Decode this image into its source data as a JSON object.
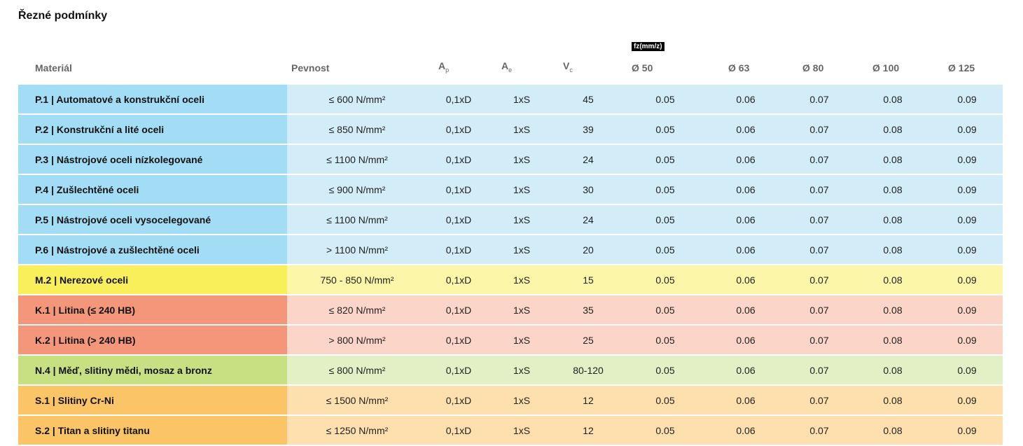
{
  "title": "Řezné podmínky",
  "header": {
    "material": "Materiál",
    "pevnost": "Pevnost",
    "ap": "A",
    "ap_sub": "p",
    "ae": "A",
    "ae_sub": "e",
    "vc": "V",
    "vc_sub": "c",
    "fz": "fz(mm/z)",
    "d50": "Ø 50",
    "d63": "Ø 63",
    "d80": "Ø 80",
    "d100": "Ø 100",
    "d125": "Ø 125"
  },
  "colors": {
    "P": [
      "#a3dcf5",
      "#d2ecf8"
    ],
    "M": [
      "#f8ef5b",
      "#fbf6a8"
    ],
    "K": [
      "#f4967a",
      "#fbd5c7"
    ],
    "N": [
      "#c6e082",
      "#e3efc5"
    ],
    "S": [
      "#fbc466",
      "#fde0ad"
    ]
  },
  "rows": [
    {
      "group": "P",
      "material": "P.1 | Automatové a konstrukční oceli",
      "pevnost": "≤ 600 N/mm²",
      "ap": "0,1xD",
      "ae": "1xS",
      "vc": "45",
      "d50": "0.05",
      "d63": "0.06",
      "d80": "0.07",
      "d100": "0.08",
      "d125": "0.09"
    },
    {
      "group": "P",
      "material": "P.2 | Konstrukční a lité oceli",
      "pevnost": "≤ 850 N/mm²",
      "ap": "0,1xD",
      "ae": "1xS",
      "vc": "39",
      "d50": "0.05",
      "d63": "0.06",
      "d80": "0.07",
      "d100": "0.08",
      "d125": "0.09"
    },
    {
      "group": "P",
      "material": "P.3 | Nástrojové oceli nízkolegované",
      "pevnost": "≤ 1100 N/mm²",
      "ap": "0,1xD",
      "ae": "1xS",
      "vc": "24",
      "d50": "0.05",
      "d63": "0.06",
      "d80": "0.07",
      "d100": "0.08",
      "d125": "0.09"
    },
    {
      "group": "P",
      "material": "P.4 | Zušlechtěné oceli",
      "pevnost": "≤ 900 N/mm²",
      "ap": "0,1xD",
      "ae": "1xS",
      "vc": "30",
      "d50": "0.05",
      "d63": "0.06",
      "d80": "0.07",
      "d100": "0.08",
      "d125": "0.09"
    },
    {
      "group": "P",
      "material": "P.5 | Nástrojové oceli vysocelegované",
      "pevnost": "≤ 1100 N/mm²",
      "ap": "0,1xD",
      "ae": "1xS",
      "vc": "24",
      "d50": "0.05",
      "d63": "0.06",
      "d80": "0.07",
      "d100": "0.08",
      "d125": "0.09"
    },
    {
      "group": "P",
      "material": "P.6 | Nástrojové a zušlechtěné oceli",
      "pevnost": "> 1100 N/mm²",
      "ap": "0,1xD",
      "ae": "1xS",
      "vc": "20",
      "d50": "0.05",
      "d63": "0.06",
      "d80": "0.07",
      "d100": "0.08",
      "d125": "0.09"
    },
    {
      "group": "M",
      "material": "M.2 | Nerezové oceli",
      "pevnost": "750 - 850 N/mm²",
      "ap": "0,1xD",
      "ae": "1xS",
      "vc": "15",
      "d50": "0.05",
      "d63": "0.06",
      "d80": "0.07",
      "d100": "0.08",
      "d125": "0.09"
    },
    {
      "group": "K",
      "material": "K.1 | Litina (≤ 240 HB)",
      "pevnost": "≤ 820 N/mm²",
      "ap": "0,1xD",
      "ae": "1xS",
      "vc": "35",
      "d50": "0.05",
      "d63": "0.06",
      "d80": "0.07",
      "d100": "0.08",
      "d125": "0.09"
    },
    {
      "group": "K",
      "material": "K.2 | Litina (> 240 HB)",
      "pevnost": "> 800 N/mm²",
      "ap": "0,1xD",
      "ae": "1xS",
      "vc": "25",
      "d50": "0.05",
      "d63": "0.06",
      "d80": "0.07",
      "d100": "0.08",
      "d125": "0.09"
    },
    {
      "group": "N",
      "material": "N.4 | Měď, slitiny mědi, mosaz a bronz",
      "pevnost": "≤ 800 N/mm²",
      "ap": "0,1xD",
      "ae": "1xS",
      "vc": "80-120",
      "d50": "0.05",
      "d63": "0.06",
      "d80": "0.07",
      "d100": "0.08",
      "d125": "0.09"
    },
    {
      "group": "S",
      "material": "S.1 | Slitiny Cr-Ni",
      "pevnost": "≤ 1500 N/mm²",
      "ap": "0,1xD",
      "ae": "1xS",
      "vc": "12",
      "d50": "0.05",
      "d63": "0.06",
      "d80": "0.07",
      "d100": "0.08",
      "d125": "0.09"
    },
    {
      "group": "S",
      "material": "S.2 | Titan a slitiny titanu",
      "pevnost": "≤ 1250 N/mm²",
      "ap": "0,1xD",
      "ae": "1xS",
      "vc": "12",
      "d50": "0.05",
      "d63": "0.06",
      "d80": "0.07",
      "d100": "0.08",
      "d125": "0.09"
    }
  ]
}
